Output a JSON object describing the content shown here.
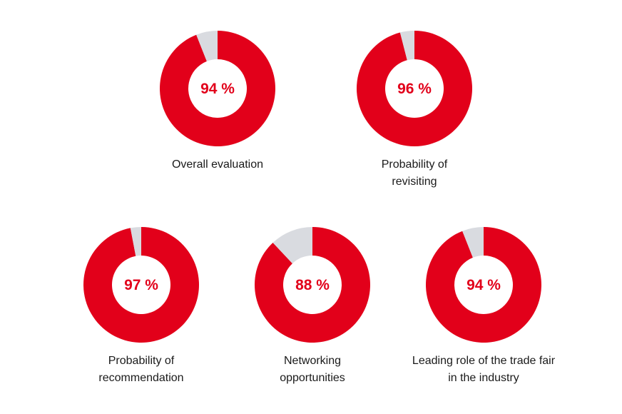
{
  "colors": {
    "accent": "#e2001a",
    "remainder": "#d9dbe0",
    "text": "#1a1a1a"
  },
  "chart_data": [
    {
      "type": "pie",
      "style": "donut",
      "value": 94,
      "label_text": "94 %",
      "category": "Overall evaluation"
    },
    {
      "type": "pie",
      "style": "donut",
      "value": 96,
      "label_text": "96 %",
      "category": "Probability of\nrevisiting"
    },
    {
      "type": "pie",
      "style": "donut",
      "value": 97,
      "label_text": "97 %",
      "category": "Probability of\nrecommendation"
    },
    {
      "type": "pie",
      "style": "donut",
      "value": 88,
      "label_text": "88 %",
      "category": "Networking\nopportunities"
    },
    {
      "type": "pie",
      "style": "donut",
      "value": 94,
      "label_text": "94 %",
      "category": "Leading role of the trade fair\nin the industry"
    }
  ]
}
